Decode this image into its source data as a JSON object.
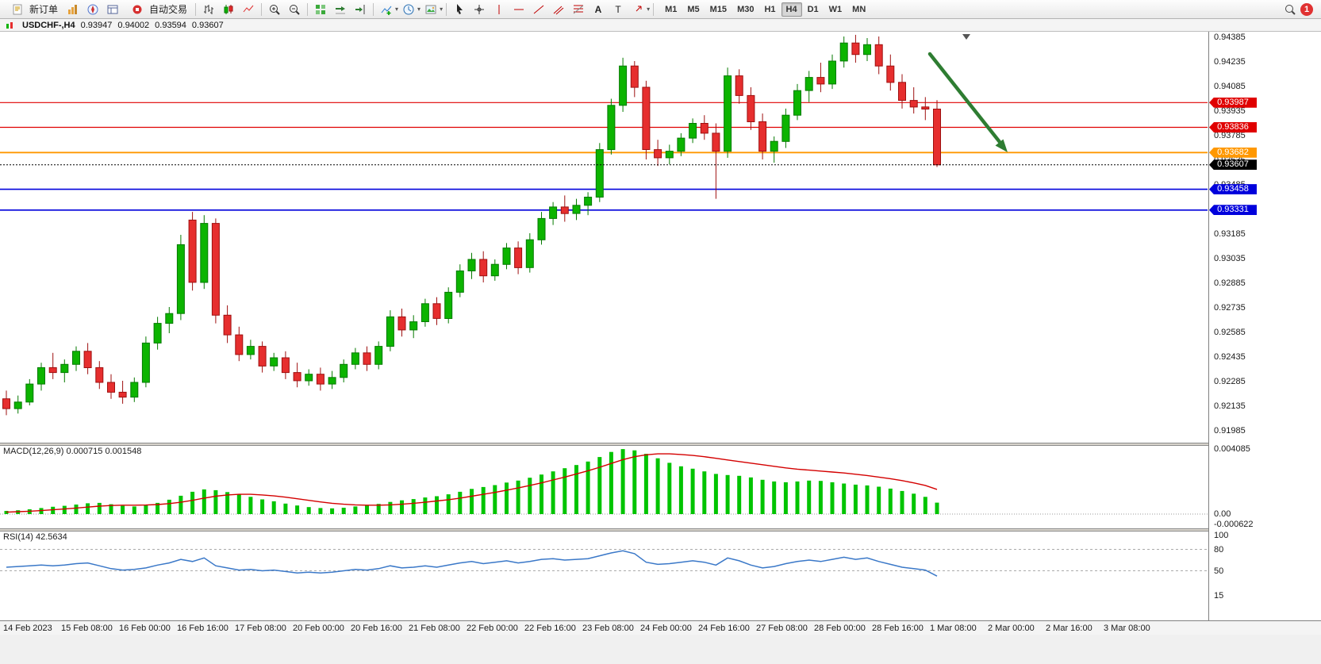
{
  "toolbar": {
    "new_order_label": "新订单",
    "autotrading_label": "自动交易",
    "timeframes": [
      "M1",
      "M5",
      "M15",
      "M30",
      "H1",
      "H4",
      "D1",
      "W1",
      "MN"
    ],
    "active_timeframe": "H4",
    "notification_count": "1"
  },
  "chart_header": {
    "symbol": "USDCHF-,H4",
    "open": "0.93947",
    "high": "0.94002",
    "low": "0.93594",
    "close": "0.93607"
  },
  "chart_data": {
    "type": "candlestick",
    "symbol": "USDCHF",
    "timeframe": "H4",
    "current_ohlc": {
      "open": 0.93947,
      "high": 0.94002,
      "low": 0.93594,
      "close": 0.93607
    },
    "price_axis_ticks": [
      "0.94385",
      "0.94235",
      "0.94085",
      "0.93935",
      "0.93785",
      "0.93635",
      "0.93485",
      "0.93335",
      "0.93185",
      "0.93035",
      "0.92885",
      "0.92735",
      "0.92585",
      "0.92435",
      "0.92285",
      "0.92135",
      "0.91985"
    ],
    "time_axis_labels": [
      "14 Feb 2023",
      "15 Feb 08:00",
      "16 Feb 00:00",
      "16 Feb 16:00",
      "17 Feb 08:00",
      "20 Feb 00:00",
      "20 Feb 16:00",
      "21 Feb 08:00",
      "22 Feb 00:00",
      "22 Feb 16:00",
      "23 Feb 08:00",
      "24 Feb 00:00",
      "24 Feb 16:00",
      "27 Feb 08:00",
      "28 Feb 00:00",
      "28 Feb 16:00",
      "1 Mar 08:00",
      "2 Mar 00:00",
      "2 Mar 16:00",
      "3 Mar 08:00"
    ],
    "horizontal_lines": [
      {
        "label": "0.93987",
        "price": 0.93987,
        "color": "#E00000",
        "width": 1.2,
        "style": "solid"
      },
      {
        "label": "0.93836",
        "price": 0.93836,
        "color": "#E00000",
        "width": 1.2,
        "style": "solid"
      },
      {
        "label": "0.93682",
        "price": 0.93682,
        "color": "#FF9800",
        "width": 1.8,
        "style": "solid"
      },
      {
        "label": "0.93607",
        "price": 0.93607,
        "color": "#000000",
        "width": 1,
        "style": "dotted",
        "role": "current-price"
      },
      {
        "label": "0.93458",
        "price": 0.93458,
        "color": "#0000DC",
        "width": 1.6,
        "style": "solid"
      },
      {
        "label": "0.93331",
        "price": 0.93331,
        "color": "#0000DC",
        "width": 1.6,
        "style": "solid"
      }
    ],
    "annotation": {
      "type": "arrow",
      "direction": "down-right",
      "color": "#2E7D32"
    },
    "candles": [
      [
        0.9218,
        0.9223,
        0.9208,
        0.9212
      ],
      [
        0.9212,
        0.922,
        0.9209,
        0.9216
      ],
      [
        0.9216,
        0.923,
        0.9214,
        0.9227
      ],
      [
        0.9227,
        0.924,
        0.9223,
        0.9237
      ],
      [
        0.9237,
        0.9246,
        0.923,
        0.9234
      ],
      [
        0.9234,
        0.9242,
        0.9228,
        0.9239
      ],
      [
        0.9239,
        0.925,
        0.9235,
        0.9247
      ],
      [
        0.9247,
        0.9252,
        0.9233,
        0.9237
      ],
      [
        0.9237,
        0.9241,
        0.9224,
        0.9228
      ],
      [
        0.9228,
        0.9233,
        0.9218,
        0.9222
      ],
      [
        0.9222,
        0.9229,
        0.9215,
        0.9219
      ],
      [
        0.9219,
        0.9231,
        0.9216,
        0.9228
      ],
      [
        0.9228,
        0.9256,
        0.9225,
        0.9252
      ],
      [
        0.9252,
        0.9268,
        0.9248,
        0.9264
      ],
      [
        0.9264,
        0.9274,
        0.9258,
        0.927
      ],
      [
        0.927,
        0.9318,
        0.9266,
        0.9312
      ],
      [
        0.9327,
        0.9332,
        0.9284,
        0.9289
      ],
      [
        0.9289,
        0.933,
        0.9285,
        0.9325
      ],
      [
        0.9325,
        0.9328,
        0.9264,
        0.9269
      ],
      [
        0.9269,
        0.9275,
        0.9252,
        0.9257
      ],
      [
        0.9257,
        0.9262,
        0.9241,
        0.9245
      ],
      [
        0.9245,
        0.9254,
        0.9242,
        0.925
      ],
      [
        0.925,
        0.9253,
        0.9234,
        0.9238
      ],
      [
        0.9238,
        0.9246,
        0.9235,
        0.9243
      ],
      [
        0.9243,
        0.9247,
        0.923,
        0.9234
      ],
      [
        0.9234,
        0.924,
        0.9225,
        0.9229
      ],
      [
        0.9229,
        0.9236,
        0.9226,
        0.9233
      ],
      [
        0.9233,
        0.9237,
        0.9223,
        0.9227
      ],
      [
        0.9227,
        0.9235,
        0.9224,
        0.9231
      ],
      [
        0.9231,
        0.9242,
        0.9228,
        0.9239
      ],
      [
        0.9239,
        0.9249,
        0.9236,
        0.9246
      ],
      [
        0.9246,
        0.925,
        0.9235,
        0.9239
      ],
      [
        0.9239,
        0.9253,
        0.9236,
        0.925
      ],
      [
        0.925,
        0.9272,
        0.9247,
        0.9268
      ],
      [
        0.9268,
        0.9273,
        0.9256,
        0.926
      ],
      [
        0.926,
        0.9269,
        0.9255,
        0.9265
      ],
      [
        0.9265,
        0.9279,
        0.9262,
        0.9276
      ],
      [
        0.9276,
        0.928,
        0.9263,
        0.9267
      ],
      [
        0.9267,
        0.9286,
        0.9264,
        0.9283
      ],
      [
        0.9283,
        0.93,
        0.928,
        0.9296
      ],
      [
        0.9296,
        0.9307,
        0.9291,
        0.9303
      ],
      [
        0.9303,
        0.9308,
        0.9289,
        0.9293
      ],
      [
        0.9293,
        0.9303,
        0.929,
        0.93
      ],
      [
        0.93,
        0.9313,
        0.9297,
        0.931
      ],
      [
        0.931,
        0.9314,
        0.9294,
        0.9298
      ],
      [
        0.9298,
        0.9319,
        0.9295,
        0.9315
      ],
      [
        0.9315,
        0.9332,
        0.9312,
        0.9328
      ],
      [
        0.9328,
        0.9338,
        0.9324,
        0.9335
      ],
      [
        0.9335,
        0.9342,
        0.9326,
        0.9331
      ],
      [
        0.9331,
        0.934,
        0.9327,
        0.9336
      ],
      [
        0.9336,
        0.9344,
        0.933,
        0.9341
      ],
      [
        0.9341,
        0.9374,
        0.9338,
        0.937
      ],
      [
        0.937,
        0.9401,
        0.9367,
        0.9397
      ],
      [
        0.9397,
        0.9426,
        0.9393,
        0.9421
      ],
      [
        0.9421,
        0.9424,
        0.9402,
        0.9408
      ],
      [
        0.9408,
        0.9412,
        0.9364,
        0.937
      ],
      [
        0.937,
        0.9376,
        0.936,
        0.9365
      ],
      [
        0.9365,
        0.9373,
        0.9361,
        0.9369
      ],
      [
        0.9369,
        0.938,
        0.9366,
        0.9377
      ],
      [
        0.9377,
        0.9389,
        0.9374,
        0.9386
      ],
      [
        0.9386,
        0.9391,
        0.9376,
        0.938
      ],
      [
        0.938,
        0.9386,
        0.934,
        0.9369
      ],
      [
        0.9369,
        0.942,
        0.9365,
        0.9415
      ],
      [
        0.9415,
        0.9419,
        0.9398,
        0.9403
      ],
      [
        0.9403,
        0.9408,
        0.9382,
        0.9387
      ],
      [
        0.9387,
        0.9392,
        0.9364,
        0.9369
      ],
      [
        0.9369,
        0.9378,
        0.9362,
        0.9375
      ],
      [
        0.9375,
        0.9395,
        0.9371,
        0.9391
      ],
      [
        0.9391,
        0.941,
        0.9388,
        0.9406
      ],
      [
        0.9406,
        0.9418,
        0.9399,
        0.9414
      ],
      [
        0.9414,
        0.9423,
        0.9405,
        0.941
      ],
      [
        0.941,
        0.9428,
        0.9407,
        0.9424
      ],
      [
        0.9424,
        0.9439,
        0.942,
        0.9435
      ],
      [
        0.9435,
        0.944,
        0.9423,
        0.9428
      ],
      [
        0.9428,
        0.9438,
        0.9424,
        0.9434
      ],
      [
        0.9434,
        0.9439,
        0.9416,
        0.9421
      ],
      [
        0.9421,
        0.9428,
        0.9406,
        0.9411
      ],
      [
        0.9411,
        0.9416,
        0.9395,
        0.94
      ],
      [
        0.94,
        0.9408,
        0.9392,
        0.9396
      ],
      [
        0.9396,
        0.9402,
        0.9388,
        0.93947
      ],
      [
        0.93947,
        0.94002,
        0.93594,
        0.93607
      ]
    ],
    "indicators": {
      "macd": {
        "name": "MACD(12,26,9)",
        "values_text": [
          "0.000715",
          "0.001548"
        ],
        "scale_labels": [
          "0.004085",
          "0.00",
          "-0.000622"
        ],
        "histogram": [
          0.0002,
          0.00024,
          0.0003,
          0.00038,
          0.00046,
          0.00052,
          0.0006,
          0.00068,
          0.0007,
          0.00062,
          0.00052,
          0.00048,
          0.00055,
          0.0007,
          0.0009,
          0.00115,
          0.0014,
          0.00155,
          0.0015,
          0.00138,
          0.00122,
          0.00108,
          0.00092,
          0.0008,
          0.00066,
          0.00054,
          0.00044,
          0.00038,
          0.00036,
          0.0004,
          0.00048,
          0.00056,
          0.00064,
          0.00076,
          0.00086,
          0.00094,
          0.00104,
          0.00112,
          0.00124,
          0.0014,
          0.00158,
          0.0017,
          0.00182,
          0.00198,
          0.0021,
          0.00228,
          0.00248,
          0.00268,
          0.00288,
          0.00308,
          0.0033,
          0.00358,
          0.0039,
          0.00408,
          0.004,
          0.00378,
          0.0035,
          0.00322,
          0.003,
          0.00285,
          0.00268,
          0.00252,
          0.00245,
          0.0024,
          0.0023,
          0.00215,
          0.00205,
          0.002,
          0.00205,
          0.0021,
          0.00208,
          0.002,
          0.00192,
          0.00185,
          0.0018,
          0.00172,
          0.0016,
          0.00145,
          0.00128,
          0.00108,
          0.000715
        ],
        "signal": [
          0.00012,
          0.00015,
          0.00018,
          0.00022,
          0.00027,
          0.00032,
          0.00038,
          0.00044,
          0.0005,
          0.00054,
          0.00056,
          0.00056,
          0.00057,
          0.0006,
          0.00066,
          0.00074,
          0.00086,
          0.001,
          0.00112,
          0.0012,
          0.00124,
          0.00124,
          0.0012,
          0.00114,
          0.00106,
          0.00096,
          0.00086,
          0.00076,
          0.00068,
          0.00062,
          0.00058,
          0.00056,
          0.00056,
          0.00058,
          0.00062,
          0.00068,
          0.00074,
          0.00082,
          0.0009,
          0.001,
          0.00112,
          0.00124,
          0.00136,
          0.0015,
          0.00164,
          0.0018,
          0.00196,
          0.00214,
          0.00232,
          0.00252,
          0.00272,
          0.00294,
          0.00318,
          0.00342,
          0.0036,
          0.00372,
          0.00378,
          0.00378,
          0.00374,
          0.00368,
          0.0036,
          0.0035,
          0.0034,
          0.0033,
          0.0032,
          0.0031,
          0.003,
          0.0029,
          0.00282,
          0.00276,
          0.0027,
          0.00264,
          0.00258,
          0.0025,
          0.00242,
          0.00232,
          0.00222,
          0.0021,
          0.00196,
          0.0018,
          0.001548
        ]
      },
      "rsi": {
        "name": "RSI(14)",
        "value_text": "42.5634",
        "scale_labels": [
          "100",
          "80",
          "50",
          "15"
        ],
        "levels": [
          80,
          50
        ],
        "values": [
          55,
          56,
          57,
          58,
          57,
          58,
          60,
          61,
          57,
          53,
          51,
          52,
          54,
          58,
          61,
          66,
          63,
          68,
          57,
          54,
          51,
          52,
          50,
          51,
          49,
          47,
          48,
          47,
          48,
          50,
          52,
          51,
          53,
          57,
          54,
          55,
          57,
          55,
          58,
          61,
          63,
          60,
          62,
          64,
          61,
          63,
          66,
          67,
          65,
          66,
          67,
          71,
          75,
          78,
          74,
          62,
          59,
          60,
          62,
          64,
          62,
          58,
          68,
          64,
          58,
          54,
          56,
          60,
          63,
          65,
          63,
          66,
          69,
          66,
          68,
          63,
          59,
          55,
          53,
          51,
          42.56
        ]
      }
    }
  },
  "colors": {
    "bull": "#0CB400",
    "bull_border": "#067A00",
    "bear": "#E62E2E",
    "bear_border": "#9E1010",
    "macd_hist": "#00C400",
    "macd_signal": "#D40000",
    "rsi_line": "#3A78C8",
    "annotation_arrow": "#2E7D32"
  }
}
